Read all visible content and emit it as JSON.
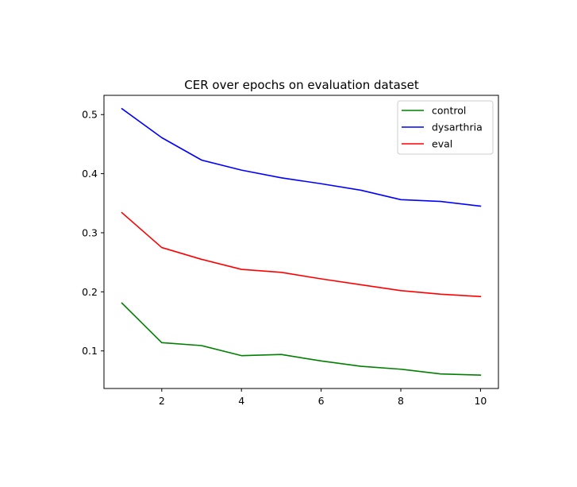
{
  "chart_data": {
    "type": "line",
    "title": "CER over epochs on evaluation dataset",
    "xlabel": "",
    "ylabel": "",
    "x": [
      1,
      2,
      3,
      4,
      5,
      6,
      7,
      8,
      9,
      10
    ],
    "series": [
      {
        "name": "control",
        "color": "#008000",
        "values": [
          0.181,
          0.114,
          0.109,
          0.092,
          0.094,
          0.083,
          0.074,
          0.069,
          0.061,
          0.059
        ]
      },
      {
        "name": "dysarthria",
        "color": "#0000ff",
        "values": [
          0.51,
          0.461,
          0.423,
          0.406,
          0.393,
          0.383,
          0.372,
          0.356,
          0.353,
          0.345
        ]
      },
      {
        "name": "eval",
        "color": "#ff0000",
        "values": [
          0.334,
          0.275,
          0.255,
          0.238,
          0.233,
          0.222,
          0.212,
          0.202,
          0.196,
          0.192
        ]
      }
    ],
    "xlim": [
      0.55,
      10.45
    ],
    "ylim": [
      0.0364,
      0.5326
    ],
    "xticks": [
      2,
      4,
      6,
      8,
      10
    ],
    "xtick_labels": [
      "2",
      "4",
      "6",
      "8",
      "10"
    ],
    "yticks": [
      0.1,
      0.2,
      0.3,
      0.4,
      0.5
    ],
    "ytick_labels": [
      "0.1",
      "0.2",
      "0.3",
      "0.4",
      "0.5"
    ],
    "grid": false,
    "legend_position": "upper-right"
  }
}
